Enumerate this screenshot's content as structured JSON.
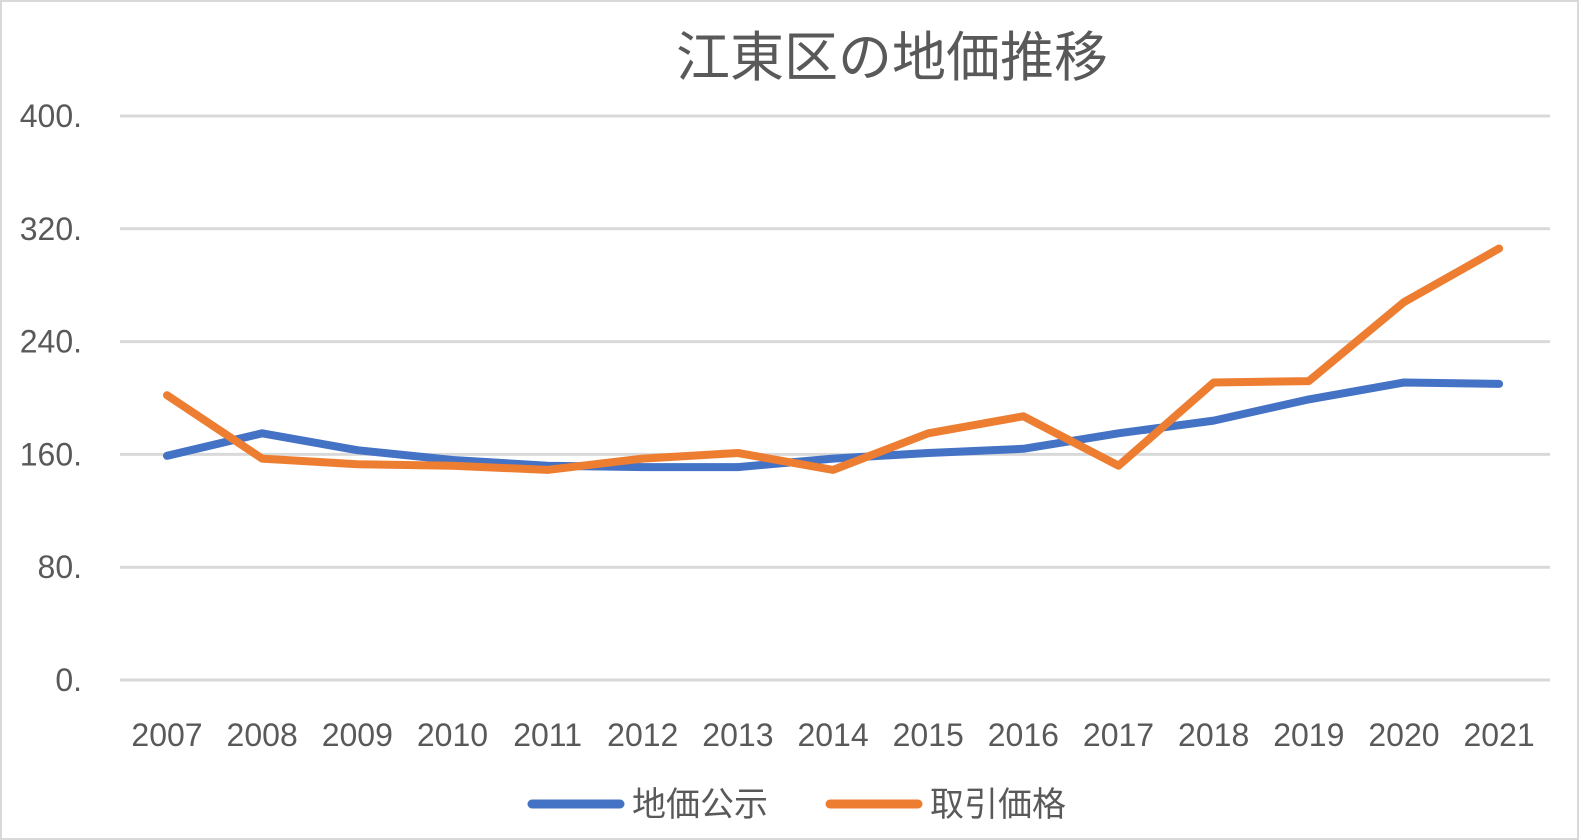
{
  "chart_data": {
    "type": "line",
    "title": "江東区の地価推移",
    "xlabel": "",
    "ylabel": "",
    "ylim": [
      0,
      400
    ],
    "yticks": [
      0,
      80,
      160,
      240,
      320,
      400
    ],
    "ytick_labels": [
      "0.",
      "80.",
      "160.",
      "240.",
      "320.",
      "400."
    ],
    "x": [
      "2007",
      "2008",
      "2009",
      "2010",
      "2011",
      "2012",
      "2013",
      "2014",
      "2015",
      "2016",
      "2017",
      "2018",
      "2019",
      "2020",
      "2021"
    ],
    "grid": true,
    "legend_position": "bottom",
    "series": [
      {
        "name": "地価公示",
        "color": "#4472c4",
        "values": [
          159,
          175,
          163,
          156,
          152,
          151,
          151,
          157,
          161,
          164,
          175,
          184,
          199,
          211,
          210
        ]
      },
      {
        "name": "取引価格",
        "color": "#ed7d31",
        "values": [
          202,
          157,
          153,
          152,
          149,
          157,
          161,
          149,
          175,
          187,
          152,
          211,
          212,
          268,
          306
        ]
      }
    ]
  }
}
